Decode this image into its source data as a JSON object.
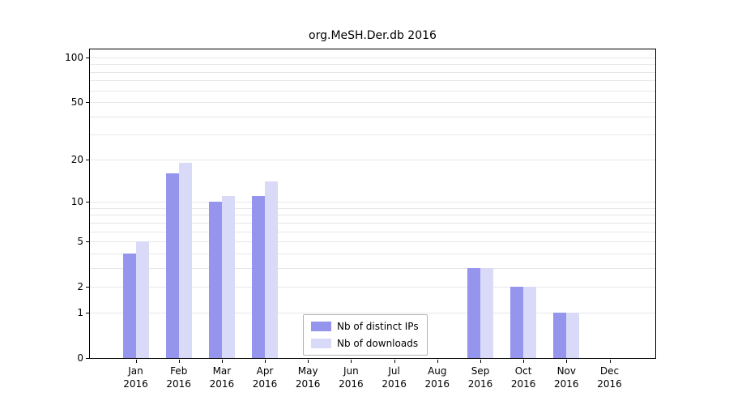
{
  "chart_data": {
    "type": "bar",
    "title": "org.MeSH.Der.db 2016",
    "categories": [
      "Jan",
      "Feb",
      "Mar",
      "Apr",
      "May",
      "Jun",
      "Jul",
      "Aug",
      "Sep",
      "Oct",
      "Nov",
      "Dec"
    ],
    "year_label": "2016",
    "series": [
      {
        "name": "Nb of distinct IPs",
        "color": "#9595ee",
        "values": [
          4,
          16,
          10,
          11,
          0,
          0,
          0,
          0,
          3,
          2,
          1,
          0
        ]
      },
      {
        "name": "Nb of downloads",
        "color": "#d9d9f8",
        "values": [
          5,
          19,
          11,
          14,
          0,
          0,
          0,
          0,
          3,
          2,
          1,
          0
        ]
      }
    ],
    "y_axis": {
      "ticks": [
        0,
        1,
        2,
        5,
        10,
        20,
        50,
        100
      ],
      "scale": "log10(1+value)",
      "range": [
        0,
        100
      ]
    },
    "grid": true,
    "legend_position": "bottom-center-inside"
  },
  "colors": {
    "gridline": "#e7e7e7",
    "axis": "#000000",
    "legend_border": "#b3b3b3",
    "background": "#ffffff"
  }
}
